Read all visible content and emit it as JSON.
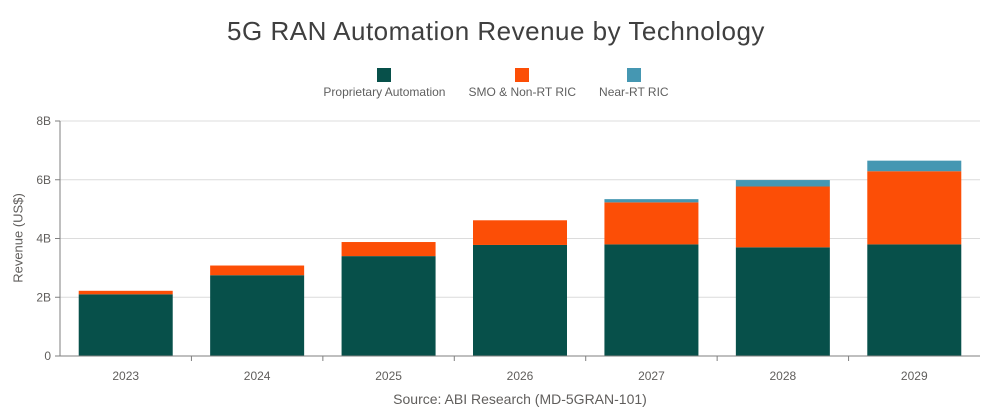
{
  "title": "5G RAN Automation Revenue by Technology",
  "source": "Source: ABI Research (MD-5GRAN-101)",
  "y_axis_title": "Revenue (US$)",
  "colors": {
    "proprietary_automation": "#07504a",
    "smo_non_rt_ric": "#fc4e06",
    "near_rt_ric": "#4597b2",
    "gridline": "#dcdcdc",
    "axis": "#7f7f7f",
    "text_muted": "#605e5c",
    "title": "#3f3f3f"
  },
  "chart_data": {
    "type": "bar",
    "stacked": true,
    "title": "5G RAN Automation Revenue by Technology",
    "xlabel": "",
    "ylabel": "Revenue (US$)",
    "categories": [
      "2023",
      "2024",
      "2025",
      "2026",
      "2027",
      "2028",
      "2029"
    ],
    "series": [
      {
        "name": "Proprietary Automation",
        "key": "proprietary-automation",
        "color": "#07504a",
        "values": [
          2.1,
          2.75,
          3.4,
          3.78,
          3.8,
          3.7,
          3.8
        ]
      },
      {
        "name": "SMO & Non-RT RIC",
        "key": "smo-non-rt-ric",
        "color": "#fc4e06",
        "values": [
          0.12,
          0.33,
          0.48,
          0.84,
          1.43,
          2.07,
          2.49
        ]
      },
      {
        "name": "Near-RT RIC",
        "key": "near-rt-ric",
        "color": "#4597b2",
        "values": [
          0,
          0,
          0,
          0,
          0.11,
          0.22,
          0.36
        ]
      }
    ],
    "ylim": [
      0,
      8
    ],
    "yticks": [
      0,
      2,
      4,
      6,
      8
    ],
    "ytick_labels": [
      "0",
      "2B",
      "4B",
      "6B",
      "8B"
    ],
    "grid": true,
    "legend_position": "top",
    "annotation": "Source: ABI Research (MD-5GRAN-101)"
  }
}
